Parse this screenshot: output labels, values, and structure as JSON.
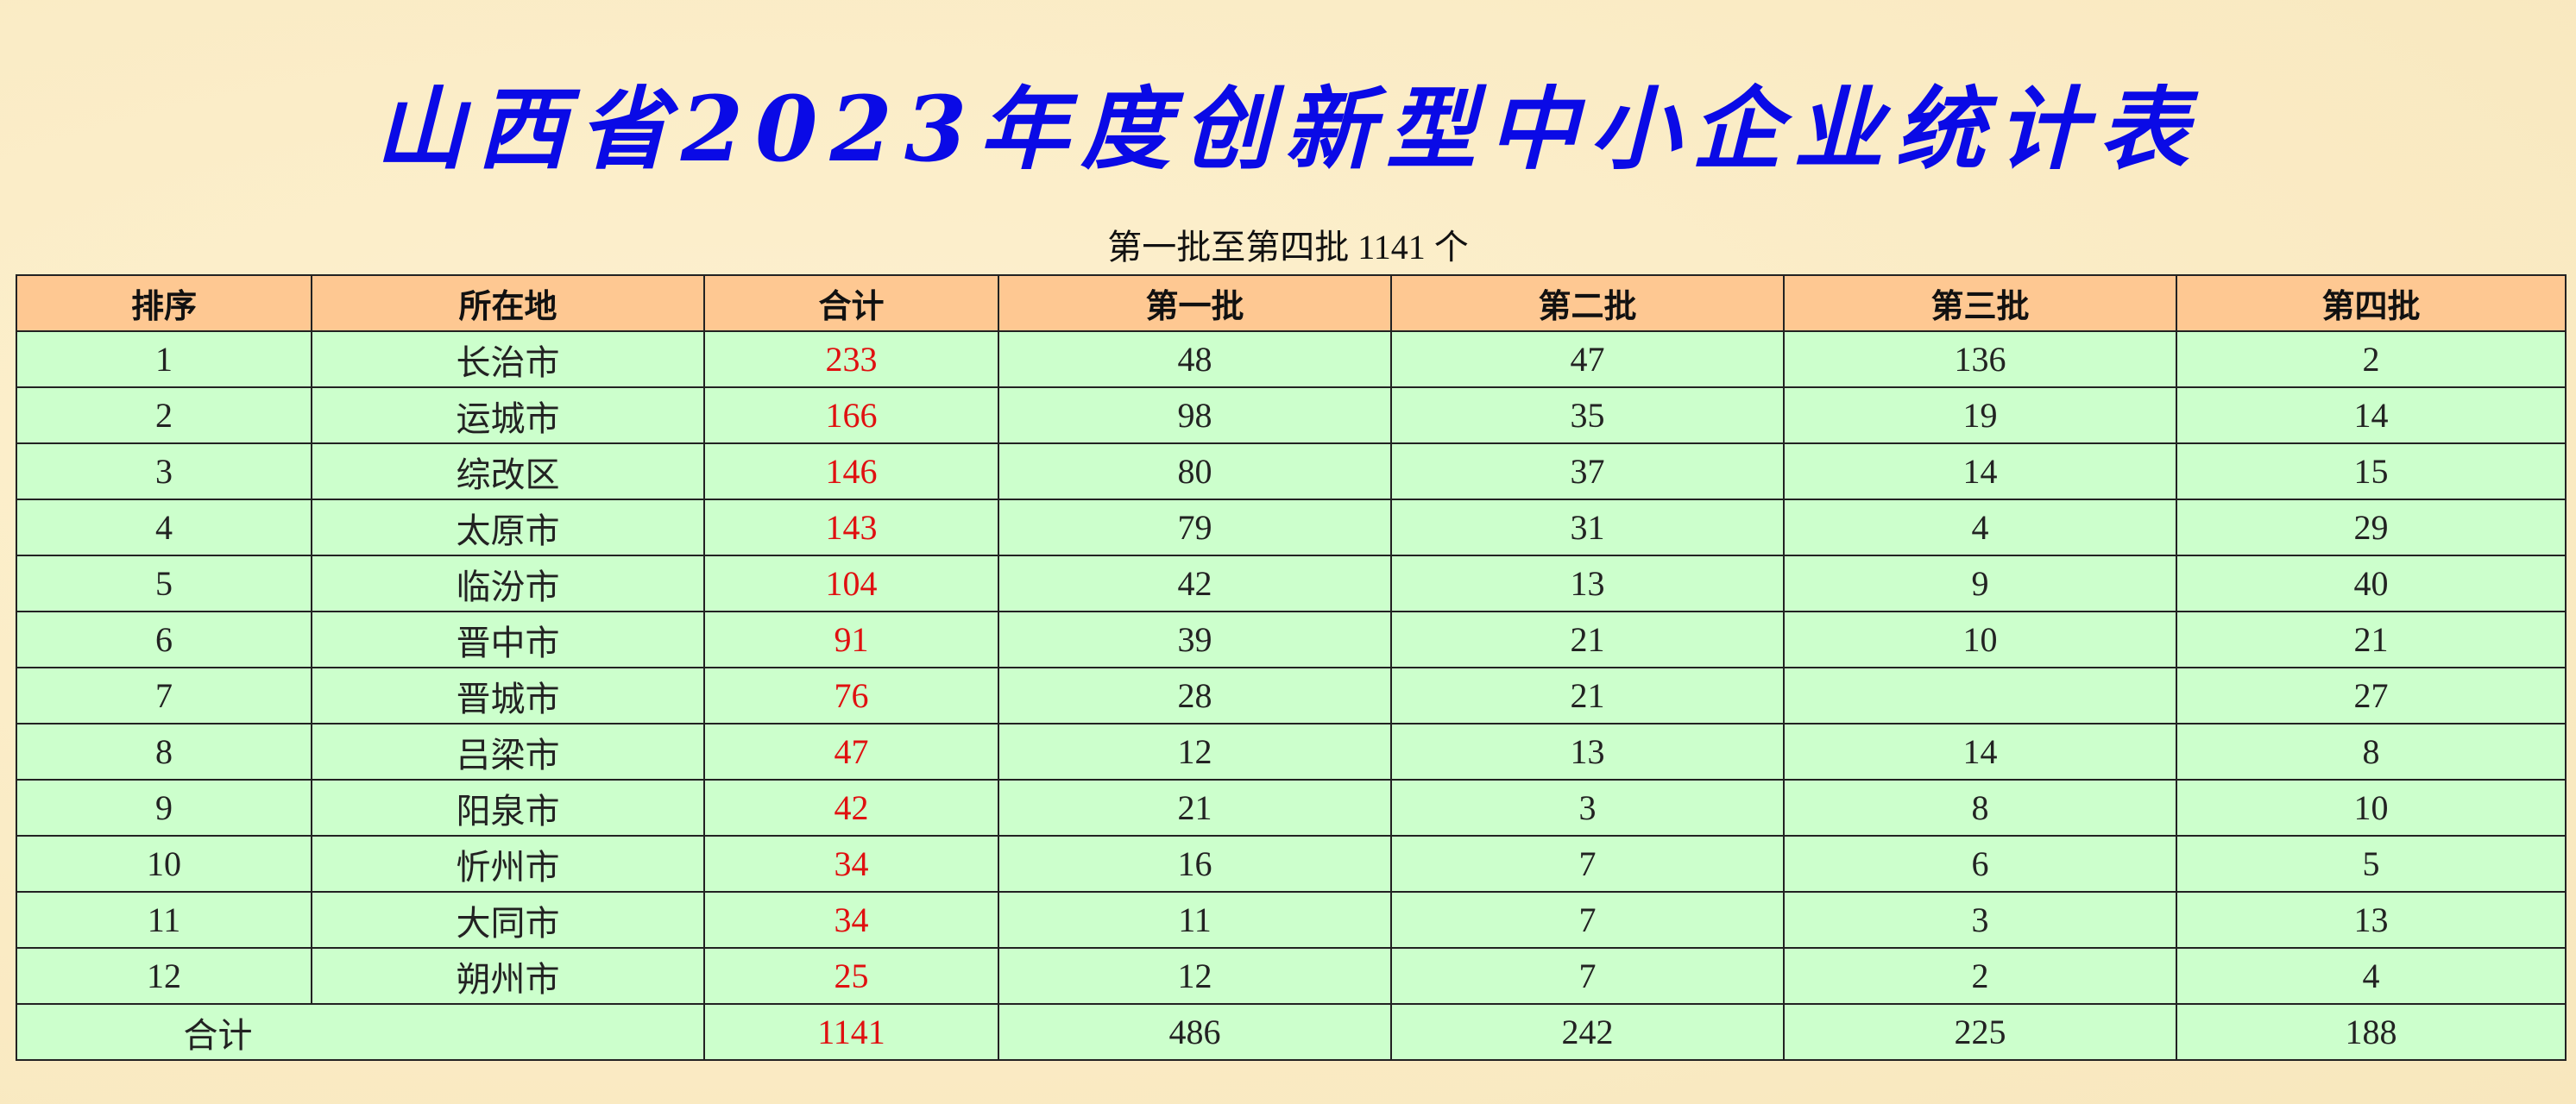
{
  "title": "山西省2023年度创新型中小企业统计表",
  "subtitle": "第一批至第四批 1141 个",
  "colors": {
    "title": "#0a0ae6",
    "header_bg": "#fec892",
    "row_bg": "#ccffcc",
    "total_text": "#e01010"
  },
  "table": {
    "headers": [
      "排序",
      "所在地",
      "合计",
      "第一批",
      "第二批",
      "第三批",
      "第四批"
    ],
    "rows": [
      [
        "1",
        "长治市",
        "233",
        "48",
        "47",
        "136",
        "2"
      ],
      [
        "2",
        "运城市",
        "166",
        "98",
        "35",
        "19",
        "14"
      ],
      [
        "3",
        "综改区",
        "146",
        "80",
        "37",
        "14",
        "15"
      ],
      [
        "4",
        "太原市",
        "143",
        "79",
        "31",
        "4",
        "29"
      ],
      [
        "5",
        "临汾市",
        "104",
        "42",
        "13",
        "9",
        "40"
      ],
      [
        "6",
        "晋中市",
        "91",
        "39",
        "21",
        "10",
        "21"
      ],
      [
        "7",
        "晋城市",
        "76",
        "28",
        "21",
        "",
        "27"
      ],
      [
        "8",
        "吕梁市",
        "47",
        "12",
        "13",
        "14",
        "8"
      ],
      [
        "9",
        "阳泉市",
        "42",
        "21",
        "3",
        "8",
        "10"
      ],
      [
        "10",
        "忻州市",
        "34",
        "16",
        "7",
        "6",
        "5"
      ],
      [
        "11",
        "大同市",
        "34",
        "11",
        "7",
        "3",
        "13"
      ],
      [
        "12",
        "朔州市",
        "25",
        "12",
        "7",
        "2",
        "4"
      ]
    ],
    "footer": [
      "合计",
      "1141",
      "486",
      "242",
      "225",
      "188"
    ]
  }
}
